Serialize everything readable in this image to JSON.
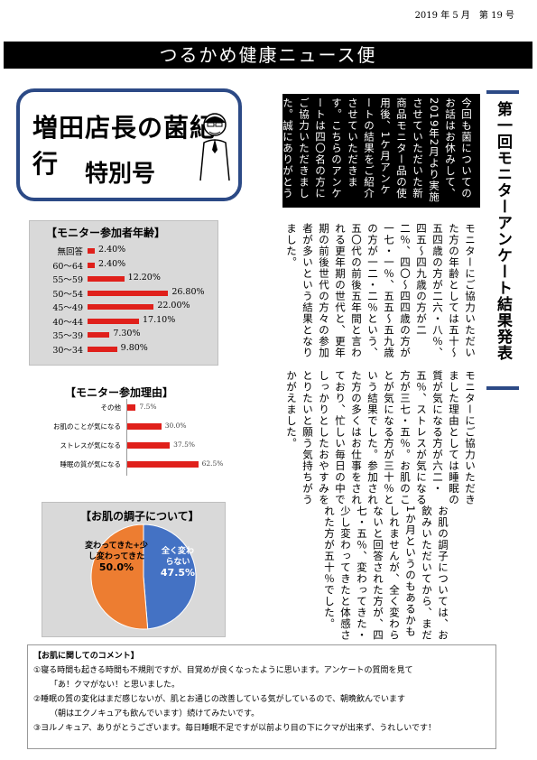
{
  "header": {
    "date": "2019 年 5 月　第 19 号",
    "title": "つるかめ健康ニュース便"
  },
  "logo": {
    "title": "増田店長の菌紀行",
    "subtitle": "特別号"
  },
  "intro_text": "今回も菌についてのお話はお休みして、2019年2月より実施させていただいた新商品モニター品の使用後、1ケ月アンケートの結果をご紹介させていただきます。こちらのアンケートは四〇名の方にご協力いただきました。誠にありがとうございました。",
  "side_heading": "第一回モニターアンケート結果発表",
  "age_section": {
    "title": "【モニター参加者年齢】",
    "items": [
      {
        "label": "無回答",
        "value": "2.40%",
        "pct": 2.4
      },
      {
        "label": "60～64",
        "value": "2.40%",
        "pct": 2.4
      },
      {
        "label": "55～59",
        "value": "12.20%",
        "pct": 12.2
      },
      {
        "label": "50～54",
        "value": "26.80%",
        "pct": 26.8
      },
      {
        "label": "45～49",
        "value": "22.00%",
        "pct": 22.0
      },
      {
        "label": "40～44",
        "value": "17.10%",
        "pct": 17.1
      },
      {
        "label": "35～39",
        "value": "7.30%",
        "pct": 7.3
      },
      {
        "label": "30～34",
        "value": "9.80%",
        "pct": 9.8
      }
    ]
  },
  "age_text": "モニターにご協力いただいた方の年齢としては五十～五四歳の方が二六・八％、四五～四九歳の方が二二％、四〇～四四歳の方が一七・一％、五五～五九歳の方が一二・二％という、五〇代の前後五年間と言われる更年期の世代と、更年期の前後世代の方々の参加者が多いという結果となりました。",
  "reason_section": {
    "title": "【モニター参加理由】",
    "items": [
      {
        "label": "その他",
        "value": "7.5%",
        "pct": 7.5
      },
      {
        "label": "お肌のことが気になる",
        "value": "30.0%",
        "pct": 30.0
      },
      {
        "label": "ストレスが気になる",
        "value": "37.5%",
        "pct": 37.5
      },
      {
        "label": "睡眠の質が気になる",
        "value": "62.5%",
        "pct": 62.5
      }
    ]
  },
  "reason_text": "モニターにご協力いただきました理由としては睡眠の質が気になる方が六二・五％、ストレスが気になる方が三七・五％。お肌のことが気になる方が三十％という結果でした。参加された方の多くはお仕事をされており、忙しい毎日の中でしっかりとしたおやすみをとりたいと願う気持ちがうかがえました。",
  "skin_section": {
    "title": "【お肌の調子について】",
    "slices": [
      {
        "label": "全く変わらない",
        "value": "47.5%",
        "pct": 47.5,
        "color": "#4472c4"
      },
      {
        "label": "変わってきた+少し変わってきた",
        "value": "50.0%",
        "pct": 50.0,
        "color": "#ed7d31"
      }
    ]
  },
  "skin_text": "お肌の調子については、お飲みいただいてから、まだ1か月というのもあるかもしれませんが、全く変わらないと回答された方が、四七・五％、変わってきた・少し変わってきたと体感された方が五十％でした。",
  "comments": {
    "title": "【お肌に関してのコメント】",
    "lines": [
      "①寝る時間も起きる時間も不規則ですが、目覚めが良くなったように思います。アンケートの質問を見て",
      "「あ！クマがない！と思いました。",
      "②睡眠の質の変化はまだ感じないが、肌とお通じの改善している気がしているので、朝晩飲んでいます",
      "（朝はエクノキュアも飲んでいます）続けてみたいです。",
      "③ヨルノキュア、ありがとうございます。毎日睡眠不足ですが以前より目の下にクマが出来ず、うれしいです！"
    ]
  }
}
